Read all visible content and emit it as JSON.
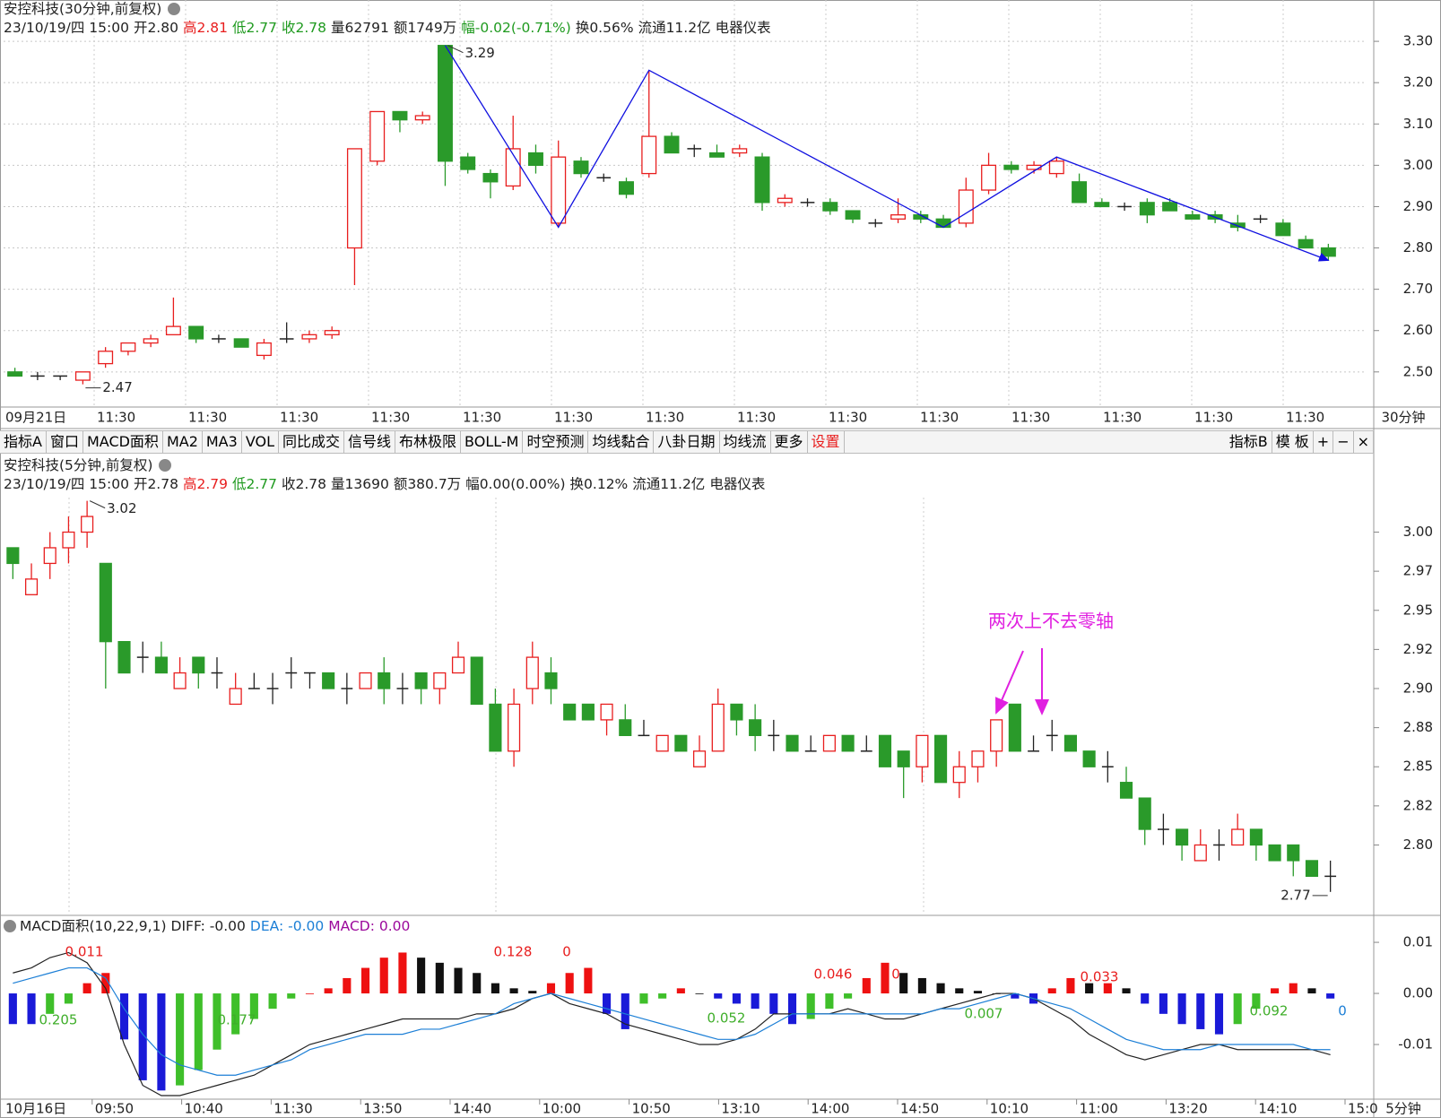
{
  "chart_data": [
    {
      "type": "candlestick",
      "title": "安控科技(30分钟,前复权)",
      "info": [
        "23/10/19/四 15:00",
        "开2.80",
        "高2.81",
        "低2.77",
        "收2.78",
        "量62791",
        "额1749万",
        "幅-0.02(-0.71%)",
        "换0.56%",
        "流通11.2亿",
        "电器仪表"
      ],
      "up_color": "#e81e1e",
      "down_color": "#2a9a2a",
      "trend_color": "#1010e0",
      "ylim": [
        2.415,
        3.4
      ],
      "yticks": [
        {
          "value": 3.3,
          "label": "3.30"
        },
        {
          "value": 3.2,
          "label": "3.20"
        },
        {
          "value": 3.1,
          "label": "3.10"
        },
        {
          "value": 3,
          "label": "3.00"
        },
        {
          "value": 2.9,
          "label": "2.90"
        },
        {
          "value": 2.8,
          "label": "2.80"
        },
        {
          "value": 2.7,
          "label": "2.70"
        },
        {
          "value": 2.6,
          "label": "2.60"
        },
        {
          "value": 2.5,
          "label": "2.50"
        }
      ],
      "grid": true,
      "x_labels": [
        "09月21日",
        "11:30",
        "11:30",
        "11:30",
        "11:30",
        "11:30",
        "11:30",
        "11:30",
        "11:30",
        "11:30",
        "11:30",
        "11:30",
        "11:30",
        "11:30",
        "11:30"
      ],
      "period": "30分钟",
      "ohlc": [
        [
          2.5,
          2.51,
          2.49,
          2.49
        ],
        [
          2.49,
          2.5,
          2.48,
          2.49
        ],
        [
          2.49,
          2.49,
          2.48,
          2.49
        ],
        [
          2.48,
          2.5,
          2.47,
          2.5
        ],
        [
          2.52,
          2.56,
          2.51,
          2.55
        ],
        [
          2.55,
          2.57,
          2.54,
          2.57
        ],
        [
          2.57,
          2.59,
          2.56,
          2.58
        ],
        [
          2.59,
          2.68,
          2.59,
          2.61
        ],
        [
          2.61,
          2.61,
          2.57,
          2.58
        ],
        [
          2.58,
          2.59,
          2.57,
          2.58
        ],
        [
          2.58,
          2.58,
          2.56,
          2.56
        ],
        [
          2.54,
          2.58,
          2.53,
          2.57
        ],
        [
          2.58,
          2.62,
          2.57,
          2.58
        ],
        [
          2.58,
          2.6,
          2.57,
          2.59
        ],
        [
          2.59,
          2.61,
          2.58,
          2.6
        ],
        [
          2.8,
          3.04,
          2.71,
          3.04
        ],
        [
          3.01,
          3.13,
          3.0,
          3.13
        ],
        [
          3.13,
          3.13,
          3.08,
          3.11
        ],
        [
          3.11,
          3.13,
          3.1,
          3.12
        ],
        [
          3.29,
          3.29,
          2.95,
          3.01
        ],
        [
          3.02,
          3.03,
          2.98,
          2.99
        ],
        [
          2.98,
          2.99,
          2.92,
          2.96
        ],
        [
          2.95,
          3.12,
          2.94,
          3.04
        ],
        [
          3.03,
          3.05,
          2.98,
          3.0
        ],
        [
          2.86,
          3.06,
          2.85,
          3.02
        ],
        [
          3.01,
          3.02,
          2.97,
          2.98
        ],
        [
          2.97,
          2.98,
          2.96,
          2.97
        ],
        [
          2.96,
          2.97,
          2.92,
          2.93
        ],
        [
          2.98,
          3.23,
          2.97,
          3.07
        ],
        [
          3.07,
          3.08,
          3.03,
          3.03
        ],
        [
          3.04,
          3.05,
          3.02,
          3.04
        ],
        [
          3.03,
          3.05,
          3.02,
          3.02
        ],
        [
          3.03,
          3.05,
          3.02,
          3.04
        ],
        [
          3.02,
          3.03,
          2.89,
          2.91
        ],
        [
          2.91,
          2.93,
          2.9,
          2.92
        ],
        [
          2.91,
          2.92,
          2.9,
          2.91
        ],
        [
          2.91,
          2.92,
          2.88,
          2.89
        ],
        [
          2.89,
          2.89,
          2.86,
          2.87
        ],
        [
          2.86,
          2.87,
          2.85,
          2.86
        ],
        [
          2.87,
          2.92,
          2.86,
          2.88
        ],
        [
          2.88,
          2.89,
          2.86,
          2.87
        ],
        [
          2.87,
          2.88,
          2.85,
          2.85
        ],
        [
          2.86,
          2.97,
          2.85,
          2.94
        ],
        [
          2.94,
          3.03,
          2.93,
          3.0
        ],
        [
          3.0,
          3.01,
          2.98,
          2.99
        ],
        [
          2.99,
          3.01,
          2.98,
          3.0
        ],
        [
          2.98,
          3.02,
          2.97,
          3.01
        ],
        [
          2.96,
          2.98,
          2.91,
          2.91
        ],
        [
          2.91,
          2.92,
          2.9,
          2.9
        ],
        [
          2.9,
          2.91,
          2.89,
          2.9
        ],
        [
          2.91,
          2.92,
          2.86,
          2.88
        ],
        [
          2.91,
          2.92,
          2.89,
          2.89
        ],
        [
          2.88,
          2.89,
          2.87,
          2.87
        ],
        [
          2.88,
          2.89,
          2.86,
          2.87
        ],
        [
          2.86,
          2.88,
          2.84,
          2.85
        ],
        [
          2.87,
          2.88,
          2.86,
          2.87
        ],
        [
          2.86,
          2.87,
          2.83,
          2.83
        ],
        [
          2.82,
          2.83,
          2.8,
          2.8
        ],
        [
          2.8,
          2.81,
          2.77,
          2.78
        ]
      ]
    },
    {
      "type": "candlestick",
      "title": "安控科技(5分钟,前复权)",
      "info": [
        "23/10/19/四 15:00",
        "开2.78",
        "高2.79",
        "低2.77",
        "收2.78",
        "量13690",
        "额380.7万",
        "幅0.00(0.00%)",
        "换0.12%",
        "流通11.2亿",
        "电器仪表"
      ],
      "up_color": "#e81e1e",
      "down_color": "#2a9a2a",
      "ylim": [
        2.755,
        3.045
      ],
      "yticks": [
        {
          "value": 3,
          "label": "3.00"
        },
        {
          "value": 2.975,
          "label": "2.97"
        },
        2.95,
        {
          "value": 2.925,
          "label": "2.92"
        },
        {
          "value": 2.9,
          "label": "2.90"
        },
        {
          "value": 2.875,
          "label": "2.88"
        },
        2.85,
        {
          "value": 2.825,
          "label": "2.82"
        },
        {
          "value": 2.8,
          "label": "2.80"
        }
      ],
      "grid": false,
      "annotation": "两次上不去零轴",
      "annotation_color": "#e020e0",
      "ohlc": [
        [
          2.99,
          2.99,
          2.97,
          2.98
        ],
        [
          2.96,
          2.98,
          2.96,
          2.97
        ],
        [
          2.98,
          3.0,
          2.97,
          2.99
        ],
        [
          2.99,
          3.01,
          2.98,
          3.0
        ],
        [
          3.0,
          3.02,
          2.99,
          3.01
        ],
        [
          2.98,
          2.98,
          2.9,
          2.93
        ],
        [
          2.93,
          2.93,
          2.91,
          2.91
        ],
        [
          2.92,
          2.93,
          2.91,
          2.92
        ],
        [
          2.92,
          2.93,
          2.91,
          2.91
        ],
        [
          2.9,
          2.92,
          2.9,
          2.91
        ],
        [
          2.92,
          2.92,
          2.9,
          2.91
        ],
        [
          2.91,
          2.92,
          2.9,
          2.91
        ],
        [
          2.89,
          2.91,
          2.89,
          2.9
        ],
        [
          2.9,
          2.91,
          2.9,
          2.9
        ],
        [
          2.9,
          2.91,
          2.89,
          2.9
        ],
        [
          2.91,
          2.92,
          2.9,
          2.91
        ],
        [
          2.91,
          2.91,
          2.9,
          2.91
        ],
        [
          2.91,
          2.91,
          2.9,
          2.9
        ],
        [
          2.9,
          2.91,
          2.89,
          2.9
        ],
        [
          2.9,
          2.91,
          2.9,
          2.91
        ],
        [
          2.91,
          2.92,
          2.89,
          2.9
        ],
        [
          2.9,
          2.91,
          2.89,
          2.9
        ],
        [
          2.91,
          2.91,
          2.89,
          2.9
        ],
        [
          2.9,
          2.91,
          2.89,
          2.91
        ],
        [
          2.91,
          2.93,
          2.91,
          2.92
        ],
        [
          2.92,
          2.92,
          2.89,
          2.89
        ],
        [
          2.89,
          2.9,
          2.86,
          2.86
        ],
        [
          2.86,
          2.9,
          2.85,
          2.89
        ],
        [
          2.9,
          2.93,
          2.89,
          2.92
        ],
        [
          2.91,
          2.92,
          2.89,
          2.9
        ],
        [
          2.89,
          2.89,
          2.88,
          2.88
        ],
        [
          2.89,
          2.89,
          2.88,
          2.88
        ],
        [
          2.88,
          2.89,
          2.87,
          2.89
        ],
        [
          2.88,
          2.89,
          2.87,
          2.87
        ],
        [
          2.87,
          2.88,
          2.87,
          2.87
        ],
        [
          2.86,
          2.87,
          2.86,
          2.87
        ],
        [
          2.87,
          2.87,
          2.86,
          2.86
        ],
        [
          2.85,
          2.87,
          2.85,
          2.86
        ],
        [
          2.86,
          2.9,
          2.86,
          2.89
        ],
        [
          2.89,
          2.89,
          2.87,
          2.88
        ],
        [
          2.88,
          2.89,
          2.86,
          2.87
        ],
        [
          2.87,
          2.88,
          2.86,
          2.87
        ],
        [
          2.87,
          2.87,
          2.86,
          2.86
        ],
        [
          2.86,
          2.87,
          2.86,
          2.86
        ],
        [
          2.86,
          2.87,
          2.86,
          2.87
        ],
        [
          2.87,
          2.87,
          2.86,
          2.86
        ],
        [
          2.86,
          2.87,
          2.86,
          2.86
        ],
        [
          2.87,
          2.87,
          2.85,
          2.85
        ],
        [
          2.86,
          2.86,
          2.83,
          2.85
        ],
        [
          2.85,
          2.87,
          2.84,
          2.87
        ],
        [
          2.87,
          2.87,
          2.84,
          2.84
        ],
        [
          2.84,
          2.86,
          2.83,
          2.85
        ],
        [
          2.85,
          2.86,
          2.84,
          2.86
        ],
        [
          2.86,
          2.88,
          2.85,
          2.88
        ],
        [
          2.89,
          2.89,
          2.86,
          2.86
        ],
        [
          2.86,
          2.87,
          2.86,
          2.86
        ],
        [
          2.87,
          2.88,
          2.86,
          2.87
        ],
        [
          2.87,
          2.87,
          2.86,
          2.86
        ],
        [
          2.86,
          2.86,
          2.85,
          2.85
        ],
        [
          2.85,
          2.86,
          2.84,
          2.85
        ],
        [
          2.84,
          2.85,
          2.83,
          2.83
        ],
        [
          2.83,
          2.83,
          2.8,
          2.81
        ],
        [
          2.81,
          2.82,
          2.8,
          2.81
        ],
        [
          2.81,
          2.81,
          2.79,
          2.8
        ],
        [
          2.79,
          2.81,
          2.79,
          2.8
        ],
        [
          2.8,
          2.81,
          2.79,
          2.8
        ],
        [
          2.8,
          2.82,
          2.8,
          2.81
        ],
        [
          2.81,
          2.81,
          2.79,
          2.8
        ],
        [
          2.8,
          2.8,
          2.79,
          2.79
        ],
        [
          2.8,
          2.8,
          2.78,
          2.79
        ],
        [
          2.79,
          2.79,
          2.78,
          2.78
        ],
        [
          2.78,
          2.79,
          2.77,
          2.78
        ]
      ]
    },
    {
      "type": "macd",
      "title": "MACD面积(10,22,9,1)",
      "info": [
        "DIFF: -0.00",
        "DEA: -0.00",
        "MACD: 0.00"
      ],
      "ylim": [
        -0.0207,
        0.0151
      ],
      "yticks": [
        0.01,
        {
          "value": 0,
          "label": "0.00"
        },
        -0.01
      ],
      "x_labels": [
        "10月16日",
        "09:50",
        "10:40",
        "11:30",
        "13:50",
        "14:40",
        "10:00",
        "10:50",
        "13:10",
        "14:00",
        "14:50",
        "10:10",
        "11:00",
        "13:20",
        "14:10",
        "15:0"
      ],
      "period": "5分钟",
      "area_values": [
        0.011,
        0.205,
        0.177,
        0.128,
        0,
        0.052,
        0.046,
        0,
        0.007,
        0.033,
        0.092,
        0
      ],
      "series": [
        {
          "color": "#222222",
          "values": [
            0.004,
            0.005,
            0.007,
            0.008,
            0.006,
            0.001,
            -0.01,
            -0.018,
            -0.02,
            -0.02,
            -0.019,
            -0.018,
            -0.017,
            -0.016,
            -0.014,
            -0.012,
            -0.01,
            -0.009,
            -0.008,
            -0.007,
            -0.006,
            -0.005,
            -0.005,
            -0.005,
            -0.005,
            -0.004,
            -0.004,
            -0.003,
            -0.001,
            0.0,
            -0.002,
            -0.003,
            -0.004,
            -0.006,
            -0.007,
            -0.008,
            -0.009,
            -0.01,
            -0.01,
            -0.009,
            -0.007,
            -0.004,
            -0.004,
            -0.004,
            -0.004,
            -0.003,
            -0.004,
            -0.005,
            -0.005,
            -0.004,
            -0.003,
            -0.002,
            -0.001,
            0.0,
            0.0,
            -0.001,
            -0.003,
            -0.005,
            -0.008,
            -0.01,
            -0.012,
            -0.013,
            -0.012,
            -0.011,
            -0.01,
            -0.01,
            -0.011,
            -0.011,
            -0.011,
            -0.011,
            -0.011,
            -0.012
          ]
        },
        {
          "color": "#1c7fd6",
          "values": [
            0.002,
            0.003,
            0.004,
            0.005,
            0.005,
            0.003,
            -0.003,
            -0.008,
            -0.012,
            -0.014,
            -0.015,
            -0.016,
            -0.016,
            -0.015,
            -0.014,
            -0.013,
            -0.011,
            -0.01,
            -0.009,
            -0.008,
            -0.008,
            -0.008,
            -0.007,
            -0.007,
            -0.006,
            -0.005,
            -0.004,
            -0.002,
            -0.001,
            0.0,
            -0.001,
            -0.002,
            -0.003,
            -0.004,
            -0.005,
            -0.006,
            -0.007,
            -0.008,
            -0.009,
            -0.009,
            -0.008,
            -0.006,
            -0.004,
            -0.004,
            -0.004,
            -0.004,
            -0.004,
            -0.004,
            -0.004,
            -0.004,
            -0.003,
            -0.003,
            -0.002,
            -0.001,
            0.0,
            -0.001,
            -0.002,
            -0.003,
            -0.005,
            -0.007,
            -0.009,
            -0.01,
            -0.011,
            -0.011,
            -0.011,
            -0.01,
            -0.01,
            -0.01,
            -0.01,
            -0.01,
            -0.011,
            -0.011
          ]
        },
        {
          "color": "#9b079b",
          "values": [
            -0.006,
            -0.006,
            -0.004,
            -0.002,
            0.002,
            0.004,
            -0.009,
            -0.017,
            -0.019,
            -0.018,
            -0.015,
            -0.011,
            -0.008,
            -0.005,
            -0.003,
            -0.001,
            0.0,
            0.001,
            0.003,
            0.005,
            0.007,
            0.008,
            0.007,
            0.006,
            0.005,
            0.004,
            0.002,
            0.001,
            0.0005,
            0.002,
            0.004,
            0.005,
            -0.004,
            -0.007,
            -0.002,
            -0.001,
            0.001,
            0.0,
            -0.001,
            -0.002,
            -0.003,
            -0.004,
            -0.006,
            -0.005,
            -0.003,
            -0.001,
            0.003,
            0.006,
            0.004,
            0.003,
            0.002,
            0.001,
            0.0005,
            0.0,
            -0.001,
            -0.002,
            0.001,
            0.003,
            0.002,
            0.002,
            0.001,
            -0.002,
            -0.004,
            -0.006,
            -0.007,
            -0.008,
            -0.006,
            -0.003,
            0.001,
            0.002,
            0.001,
            -0.001
          ]
        }
      ]
    }
  ],
  "toolbar": {
    "left": [
      "指标A",
      "窗口",
      "MACD面积",
      "MA2",
      "MA3",
      "VOL",
      "同比成交",
      "信号线",
      "布林极限",
      "BOLL-M",
      "时空预测",
      "均线黏合",
      "八卦日期",
      "均线流",
      "更多",
      "设置"
    ],
    "right": [
      "指标B",
      "模 板",
      "+",
      "−",
      "×"
    ]
  }
}
